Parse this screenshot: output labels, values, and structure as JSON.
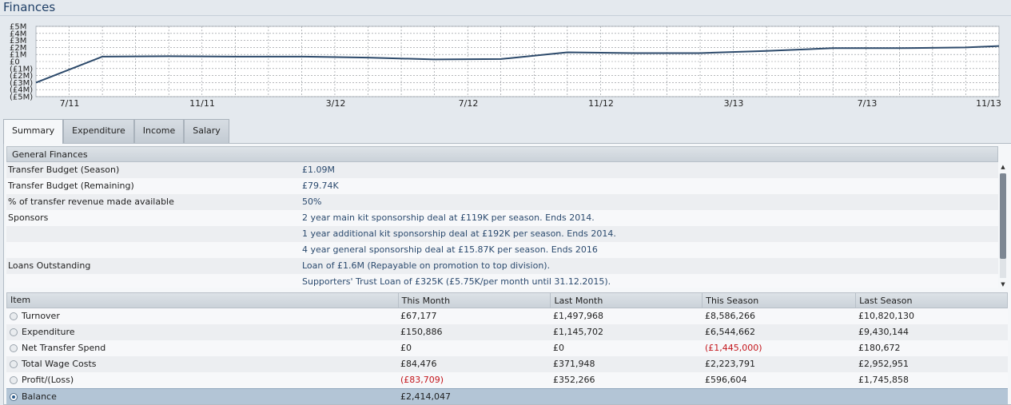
{
  "page_title": "Finances",
  "chart_data": {
    "type": "line",
    "title": "",
    "y_ticks": [
      "£5M",
      "£4M",
      "£3M",
      "£2M",
      "£1M",
      "£0",
      "(£1M)",
      "(£2M)",
      "(£3M)",
      "(£4M)",
      "(£5M)"
    ],
    "ylim": [
      -5,
      5
    ],
    "x_labels": [
      "7/11",
      "11/11",
      "3/12",
      "7/12",
      "11/12",
      "3/13",
      "7/13",
      "11/13"
    ],
    "x": [
      0,
      2,
      4,
      6,
      8,
      10,
      12,
      14,
      16,
      18,
      20,
      22,
      24,
      26,
      28,
      29
    ],
    "values": [
      -3.0,
      0.7,
      0.75,
      0.7,
      0.7,
      0.55,
      0.3,
      0.35,
      1.3,
      1.2,
      1.2,
      1.5,
      1.9,
      1.9,
      2.0,
      2.2
    ],
    "color": "#2d4a6b",
    "grid": true
  },
  "tabs": [
    {
      "label": "Summary",
      "active": true
    },
    {
      "label": "Expenditure",
      "active": false
    },
    {
      "label": "Income",
      "active": false
    },
    {
      "label": "Salary",
      "active": false
    }
  ],
  "general": {
    "heading": "General Finances",
    "rows": [
      {
        "label": "Transfer Budget (Season)",
        "value": "£1.09M"
      },
      {
        "label": "Transfer Budget (Remaining)",
        "value": "£79.74K"
      },
      {
        "label": "% of transfer revenue made available",
        "value": "50%"
      },
      {
        "label": "Sponsors",
        "value": "2 year main kit sponsorship deal at £119K per season. Ends 2014."
      },
      {
        "label": "",
        "value": "1 year additional kit sponsorship deal at £192K per season. Ends 2014."
      },
      {
        "label": "",
        "value": "4 year general sponsorship deal at £15.87K per season. Ends 2016"
      },
      {
        "label": "Loans Outstanding",
        "value": "Loan of £1.6M (Repayable on promotion to top division)."
      },
      {
        "label": "",
        "value": "Supporters' Trust Loan of £325K (£5.75K/per month until 31.12.2015)."
      }
    ]
  },
  "table": {
    "headers": [
      "Item",
      "This Month",
      "Last Month",
      "This Season",
      "Last Season"
    ],
    "rows": [
      {
        "item": "Turnover",
        "cells": [
          "£67,177",
          "£1,497,968",
          "£8,586,266",
          "£10,820,130"
        ],
        "neg": [
          false,
          false,
          false,
          false
        ],
        "selected": false
      },
      {
        "item": "Expenditure",
        "cells": [
          "£150,886",
          "£1,145,702",
          "£6,544,662",
          "£9,430,144"
        ],
        "neg": [
          false,
          false,
          false,
          false
        ],
        "selected": false
      },
      {
        "item": "Net Transfer Spend",
        "cells": [
          "£0",
          "£0",
          "(£1,445,000)",
          "£180,672"
        ],
        "neg": [
          false,
          false,
          true,
          false
        ],
        "selected": false
      },
      {
        "item": "Total Wage Costs",
        "cells": [
          "£84,476",
          "£371,948",
          "£2,223,791",
          "£2,952,951"
        ],
        "neg": [
          false,
          false,
          false,
          false
        ],
        "selected": false
      },
      {
        "item": "Profit/(Loss)",
        "cells": [
          "(£83,709)",
          "£352,266",
          "£596,604",
          "£1,745,858"
        ],
        "neg": [
          true,
          false,
          false,
          false
        ],
        "selected": false
      },
      {
        "item": "Balance",
        "cells": [
          "£2,414,047",
          "",
          "",
          ""
        ],
        "neg": [
          false,
          false,
          false,
          false
        ],
        "selected": true
      }
    ]
  },
  "colors": {
    "title": "#1f3f66",
    "negative": "#c4161c",
    "selected_row": "#b3c5d6"
  }
}
